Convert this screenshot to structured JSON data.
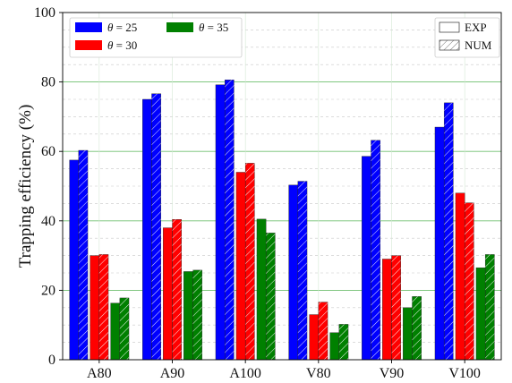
{
  "chart_data": {
    "type": "bar",
    "categories": [
      "A80",
      "A90",
      "A100",
      "V80",
      "V90",
      "V100"
    ],
    "series": [
      {
        "name": "θ = 25",
        "theta": "θ",
        "eq": " = 25",
        "color": "#0000ff",
        "exp": [
          57.5,
          75,
          79.2,
          50.3,
          58.6,
          67
        ],
        "num": [
          60.3,
          76.6,
          80.6,
          51.4,
          63.2,
          74
        ]
      },
      {
        "name": "θ = 30",
        "theta": "θ",
        "eq": " = 30",
        "color": "#ff0000",
        "exp": [
          30,
          38,
          54,
          13,
          29,
          48
        ],
        "num": [
          30.3,
          40.4,
          56.6,
          16.6,
          30,
          45.2
        ]
      },
      {
        "name": "θ = 35",
        "theta": "θ",
        "eq": " = 35",
        "color": "#008000",
        "exp": [
          16.3,
          25.4,
          40.5,
          7.8,
          15,
          26.5
        ],
        "num": [
          17.8,
          25.8,
          36.5,
          10.2,
          18.2,
          30.3
        ]
      }
    ],
    "style_legend": [
      {
        "label": "EXP",
        "hatch": false
      },
      {
        "label": "NUM",
        "hatch": true
      }
    ],
    "ylabel": "Trapping efficiency (%)",
    "xlabel": "",
    "ylim": [
      0,
      100
    ],
    "yticks": [
      "0",
      "20",
      "40",
      "60",
      "80",
      "100"
    ],
    "grid": true,
    "legend_position": "top-left (series), top-right (EXP/NUM)"
  }
}
